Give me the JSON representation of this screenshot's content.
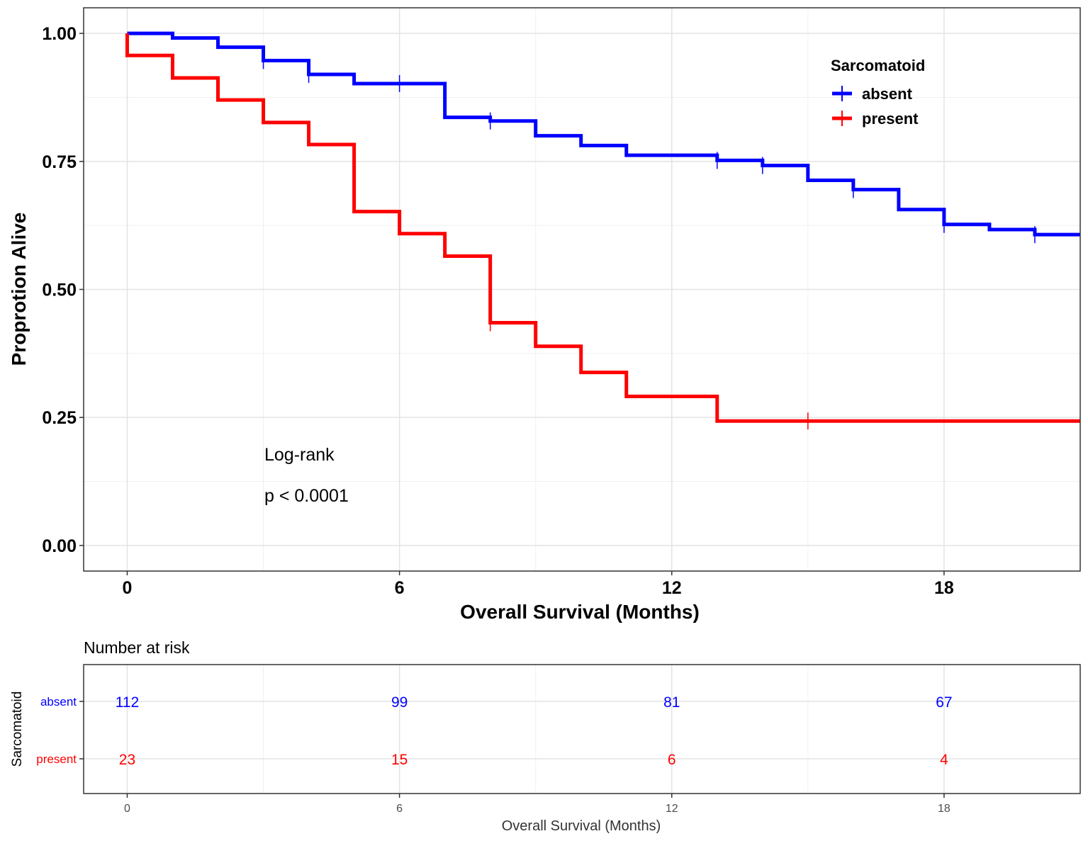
{
  "chart_data": [
    {
      "type": "line",
      "subtype": "kaplan-meier-step",
      "title": "",
      "xlabel": "Overall Survival (Months)",
      "ylabel": "Proprotion Alive",
      "xlim": [
        -0.96,
        21.0
      ],
      "ylim": [
        -0.05,
        1.05
      ],
      "x_ticks": [
        0,
        6,
        12,
        18
      ],
      "x_tick_labels": [
        "0",
        "6",
        "12",
        "18"
      ],
      "y_ticks": [
        0.0,
        0.25,
        0.5,
        0.75,
        1.0
      ],
      "y_tick_labels": [
        "0.00",
        "0.25",
        "0.50",
        "0.75",
        "1.00"
      ],
      "grid": true,
      "legend": {
        "title": "Sarcomatoid",
        "position": "top-right",
        "entries": [
          "absent",
          "present"
        ]
      },
      "annotations": [
        "Log-rank",
        "p < 0.0001"
      ],
      "series": [
        {
          "name": "absent",
          "color": "#0000ff",
          "steps": [
            [
              0,
              1.0
            ],
            [
              1,
              0.991
            ],
            [
              2,
              0.973
            ],
            [
              3,
              0.947
            ],
            [
              4,
              0.92
            ],
            [
              5,
              0.902
            ],
            [
              7,
              0.836
            ],
            [
              8,
              0.829
            ],
            [
              9,
              0.8
            ],
            [
              10,
              0.781
            ],
            [
              11,
              0.762
            ],
            [
              13,
              0.752
            ],
            [
              14,
              0.742
            ],
            [
              15,
              0.713
            ],
            [
              16,
              0.695
            ],
            [
              17,
              0.656
            ],
            [
              18,
              0.627
            ],
            [
              19,
              0.617
            ],
            [
              20,
              0.607
            ],
            [
              21,
              0.607
            ]
          ],
          "censor_times": [
            3,
            4,
            6,
            8,
            13,
            14,
            16,
            18,
            20
          ]
        },
        {
          "name": "present",
          "color": "#ff0000",
          "steps": [
            [
              0,
              1.0
            ],
            [
              0,
              0.957
            ],
            [
              1,
              0.913
            ],
            [
              2,
              0.87
            ],
            [
              3,
              0.826
            ],
            [
              4,
              0.783
            ],
            [
              5,
              0.652
            ],
            [
              6,
              0.609
            ],
            [
              7,
              0.565
            ],
            [
              8,
              0.435
            ],
            [
              9,
              0.389
            ],
            [
              10,
              0.338
            ],
            [
              11,
              0.291
            ],
            [
              13,
              0.243
            ],
            [
              21,
              0.243
            ]
          ],
          "censor_times": [
            8,
            15
          ]
        }
      ]
    },
    {
      "type": "table",
      "title": "Number at risk",
      "xlabel": "Overall Survival (Months)",
      "ylabel": "Sarcomatoid",
      "x_ticks": [
        0,
        6,
        12,
        18
      ],
      "x_tick_labels": [
        "0",
        "6",
        "12",
        "18"
      ],
      "rows": [
        {
          "name": "absent",
          "color": "#0000ff",
          "counts": [
            "112",
            "99",
            "81",
            "67"
          ]
        },
        {
          "name": "present",
          "color": "#ff0000",
          "counts": [
            "23",
            "15",
            "6",
            "4"
          ]
        }
      ]
    }
  ]
}
